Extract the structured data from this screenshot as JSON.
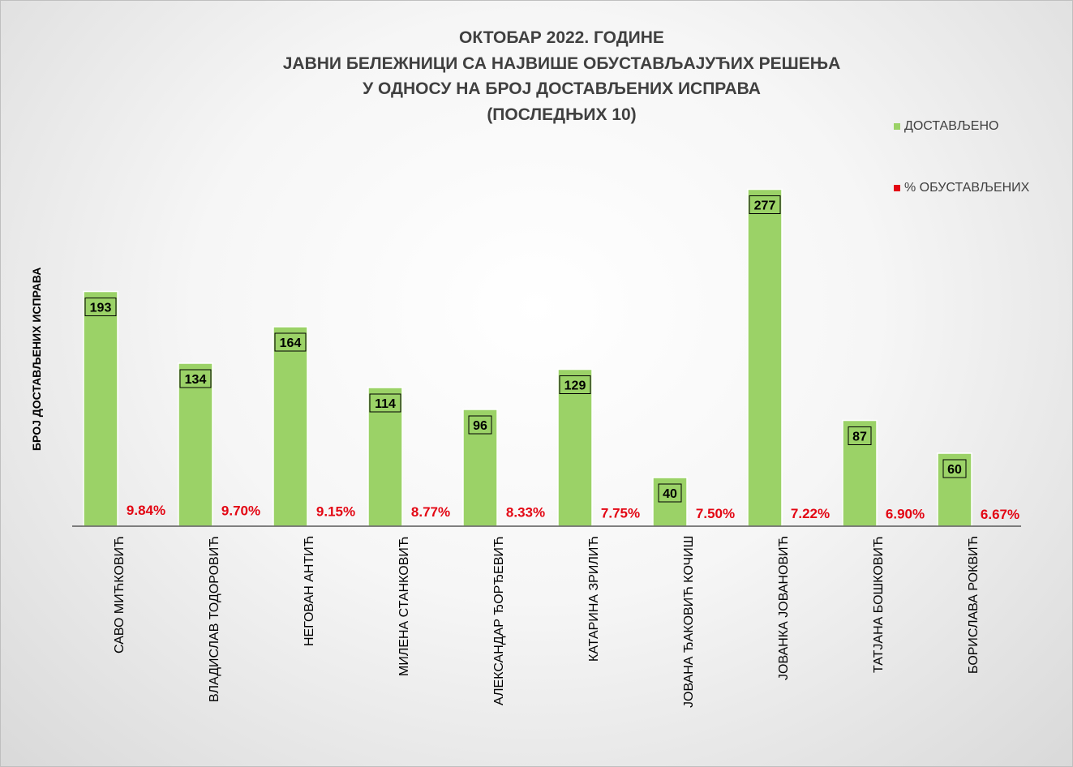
{
  "colors": {
    "delivered": "#9bd267",
    "suspended_pct": "#e30613",
    "axis": "#595959"
  },
  "legend": {
    "delivered": "ДОСТАВЉЕНО",
    "suspended_pct": "% ОБУСТАВЉЕНИХ"
  },
  "chart_data": {
    "type": "bar",
    "title": "ОКТОБАР 2022. ГОДИНЕ\nЈАВНИ БЕЛЕЖНИЦИ СА НАЈВИШЕ ОБУСТАВЉАЈУЋИХ РЕШЕЊА\nУ ОДНОСУ НА БРОЈ ДОСТАВЉЕНИХ ИСПРАВА\n(ПОСЛЕДЊИХ 10)",
    "ylabel": "БРОЈ ДОСТАВЉЕНИХ ИСПРАВА",
    "xlabel": "",
    "ylim": [
      0,
      300
    ],
    "grid": false,
    "legend_position": "top-right",
    "categories": [
      "САВО МИЋКОВИЋ",
      "ВЛАДИСЛАВ ТОДОРОВИЋ",
      "НЕГОВАН АНТИЋ",
      "МИЛЕНА СТАНКОВИЋ",
      "АЛЕКСАНДАР ЂОРЂЕВИЋ",
      "КАТАРИНА ЗРИЛИЋ",
      "ЈОВАНА ЂАКОВИЋ КОЧИШ",
      "ЈОВАНКА ЈОВАНОВИЋ",
      "ТАТЈАНА БОШКОВИЋ",
      "БОРИСЛАВА РОКВИЋ"
    ],
    "series": [
      {
        "name": "ДОСТАВЉЕНО",
        "values": [
          193,
          134,
          164,
          114,
          96,
          129,
          40,
          277,
          87,
          60
        ]
      },
      {
        "name": "% ОБУСТАВЉЕНИХ",
        "values": [
          9.84,
          9.7,
          9.15,
          8.77,
          8.33,
          7.75,
          7.5,
          7.22,
          6.9,
          6.67
        ],
        "labels": [
          "9.84%",
          "9.70%",
          "9.15%",
          "8.77%",
          "8.33%",
          "7.75%",
          "7.50%",
          "7.22%",
          "6.90%",
          "6.67%"
        ]
      }
    ]
  }
}
